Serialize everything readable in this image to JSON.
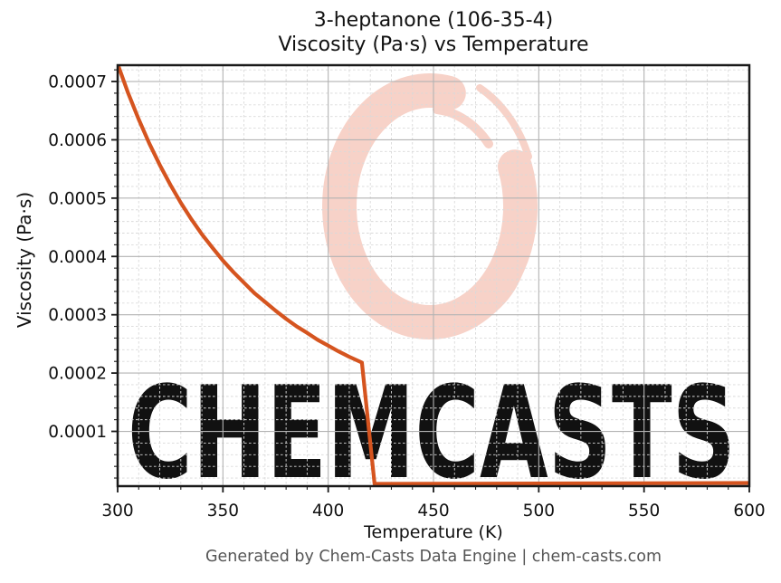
{
  "figure": {
    "title_line1": "3-heptanone (106-35-4)",
    "title_line2": "Viscosity (Pa·s) vs Temperature"
  },
  "footer": {
    "text": "Generated by Chem-Casts Data Engine | chem-casts.com"
  },
  "watermark": {
    "text": "CHEMCASTS",
    "logo": "enso-brush-ring-logo",
    "text_color": "#f6cdc1",
    "ring_color": "#f7d2c8"
  },
  "colors": {
    "curve": "#d5541f",
    "grid_major": "#b3b3b3",
    "grid_minor": "#d9d9d9",
    "spine": "#1a1a1a",
    "tick": "#1a1a1a",
    "footer_text": "#555555"
  },
  "chart_data": {
    "type": "line",
    "title": "3-heptanone (106-35-4) — Viscosity (Pa·s) vs Temperature",
    "xlabel": "Temperature (K)",
    "ylabel": "Viscosity (Pa·s)",
    "xlim": [
      300,
      600
    ],
    "ylim": [
      6.1e-06,
      0.000728
    ],
    "xticks": [
      300,
      350,
      400,
      450,
      500,
      550,
      600
    ],
    "xtick_labels": [
      "300",
      "350",
      "400",
      "450",
      "500",
      "550",
      "600"
    ],
    "yticks": [
      0.0001,
      0.0002,
      0.0003,
      0.0004,
      0.0005,
      0.0006,
      0.0007
    ],
    "ytick_labels": [
      "0.0001",
      "0.0002",
      "0.0003",
      "0.0004",
      "0.0005",
      "0.0006",
      "0.0007"
    ],
    "x_minor_step": 10,
    "y_minor_step": 2e-05,
    "grid": "major solid, minor dashed, both axes",
    "legend": "none",
    "series": [
      {
        "name": "viscosity",
        "color": "#d5541f",
        "points": [
          [
            300,
            0.00073
          ],
          [
            305,
            0.00068
          ],
          [
            310,
            0.000635
          ],
          [
            315,
            0.000594
          ],
          [
            320,
            0.000557
          ],
          [
            325,
            0.000523
          ],
          [
            330,
            0.000492
          ],
          [
            335,
            0.000464
          ],
          [
            340,
            0.000438
          ],
          [
            345,
            0.000415
          ],
          [
            350,
            0.000393
          ],
          [
            355,
            0.000373
          ],
          [
            360,
            0.000355
          ],
          [
            365,
            0.000337
          ],
          [
            370,
            0.000322
          ],
          [
            375,
            0.000307
          ],
          [
            380,
            0.000293
          ],
          [
            385,
            0.00028
          ],
          [
            390,
            0.000269
          ],
          [
            395,
            0.000257
          ],
          [
            400,
            0.000247
          ],
          [
            405,
            0.000237
          ],
          [
            410,
            0.000228
          ],
          [
            416,
            0.000218
          ],
          [
            422,
            1e-05
          ],
          [
            450,
            1.02e-05
          ],
          [
            500,
            1.06e-05
          ],
          [
            550,
            1.1e-05
          ],
          [
            600,
            1.15e-05
          ]
        ]
      }
    ]
  }
}
